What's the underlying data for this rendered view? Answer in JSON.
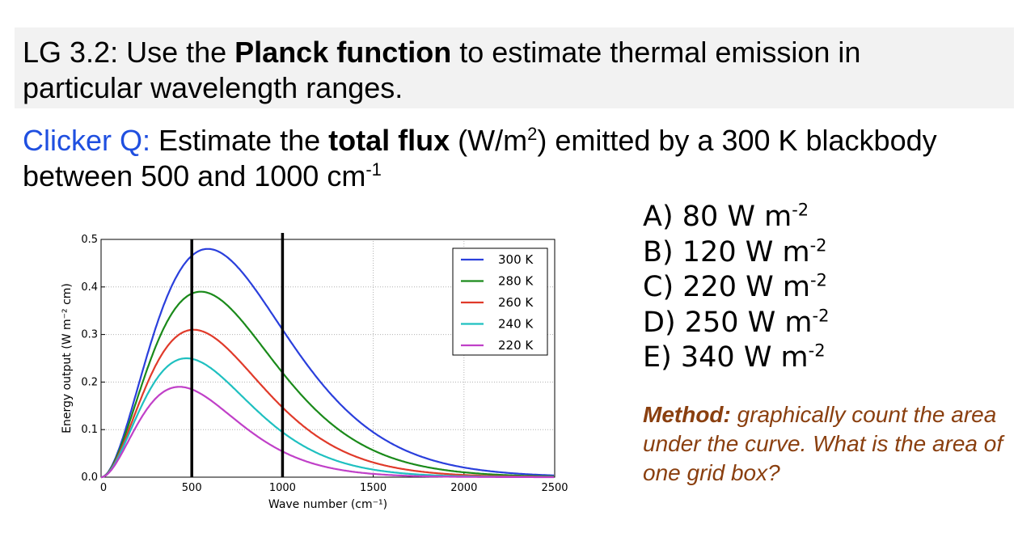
{
  "slide": {
    "lg_prefix": "LG 3.2: Use the ",
    "lg_bold": "Planck function",
    "lg_suffix": " to estimate thermal emission in",
    "lg_line2": "particular wavelength ranges.",
    "q_prefix": "Clicker Q:",
    "q_text1": " Estimate the ",
    "q_bold": "total flux",
    "q_text2": " (W/m",
    "q_sup1": "2",
    "q_text3": ") emitted by a 300 K blackbody",
    "q_line2": "between 500 and 1000 cm",
    "q_sup2": "-1",
    "answers": [
      {
        "text": "A) 80 W m",
        "sup": "-2"
      },
      {
        "text": "B) 120 W m",
        "sup": "-2"
      },
      {
        "text": "C) 220 W m",
        "sup": "-2"
      },
      {
        "text": "D)  250 W m",
        "sup": "-2"
      },
      {
        "text": "E)  340 W m",
        "sup": "-2"
      }
    ],
    "method_label": "Method:",
    "method_text": " graphically count the area under the curve. What is the area of one grid box?"
  },
  "colors": {
    "title_blue": "#1f4fe0",
    "method_brown": "#8a3f0f",
    "banner_bg": "#f2f2f2"
  },
  "chart_data": {
    "type": "line",
    "xlabel": "Wave number (cm⁻¹)",
    "ylabel": "Energy output (W m⁻² cm)",
    "xlim": [
      0,
      2500
    ],
    "ylim": [
      0,
      0.5
    ],
    "xticks": [
      0,
      500,
      1000,
      1500,
      2000,
      2500
    ],
    "xtick_labels": [
      "0",
      "500",
      "1000",
      "1500",
      "2000",
      "2500"
    ],
    "yticks": [
      0.0,
      0.1,
      0.2,
      0.3,
      0.4,
      0.5
    ],
    "ytick_labels": [
      "0.0",
      "0.1",
      "0.2",
      "0.3",
      "0.4",
      "0.5"
    ],
    "grid": true,
    "legend_position": "top-right",
    "vertical_markers": [
      500,
      1000
    ],
    "series": [
      {
        "name": "300 K",
        "temperature": 300,
        "color": "#2a3fdc",
        "peak": [
          590,
          0.48
        ]
      },
      {
        "name": "280 K",
        "temperature": 280,
        "color": "#1a8a1a",
        "peak": [
          550,
          0.39
        ]
      },
      {
        "name": "260 K",
        "temperature": 260,
        "color": "#e03a2a",
        "peak": [
          510,
          0.31
        ]
      },
      {
        "name": "240 K",
        "temperature": 240,
        "color": "#1fc0c0",
        "peak": [
          470,
          0.25
        ]
      },
      {
        "name": "220 K",
        "temperature": 220,
        "color": "#c040c8",
        "peak": [
          430,
          0.19
        ]
      }
    ]
  }
}
